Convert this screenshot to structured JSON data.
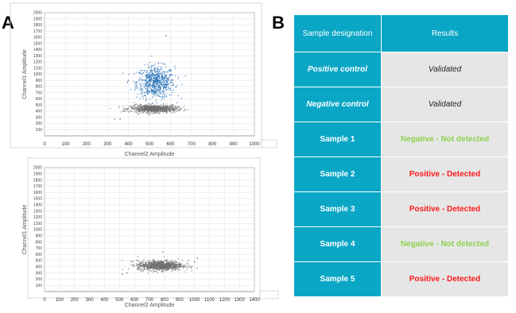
{
  "panel_labels": {
    "a": "A",
    "b": "B"
  },
  "chart_data": [
    {
      "type": "scatter",
      "title": "",
      "xlabel": "Channel2 Amplitude",
      "ylabel": "Channel1 Amplitude",
      "xlim": [
        0,
        1000
      ],
      "ylim": [
        0,
        2000
      ],
      "x_ticks": [
        0,
        100,
        200,
        300,
        400,
        500,
        600,
        700,
        800,
        900,
        1000
      ],
      "y_ticks": [
        100,
        200,
        300,
        400,
        500,
        600,
        700,
        800,
        900,
        1000,
        1100,
        1200,
        1300,
        1400,
        1500,
        1600,
        1700,
        1800,
        1900,
        2000
      ],
      "grid": true,
      "clusters": [
        {
          "color": "#2a73b8",
          "x_center": 530,
          "x_spread": 45,
          "y_center": 870,
          "y_spread": 130,
          "n": 700
        },
        {
          "color": "#6d6d6d",
          "x_center": 520,
          "x_spread": 55,
          "y_center": 440,
          "y_spread": 30,
          "n": 800
        }
      ],
      "outliers": [
        {
          "x": 335,
          "y": 270,
          "color": "#6d6d6d"
        },
        {
          "x": 360,
          "y": 275,
          "color": "#6d6d6d"
        },
        {
          "x": 580,
          "y": 1630,
          "color": "#2a73b8"
        },
        {
          "x": 395,
          "y": 870,
          "color": "#2a73b8"
        }
      ]
    },
    {
      "type": "scatter",
      "title": "",
      "xlabel": "Channel2 Amplitude",
      "ylabel": "Channel1 Amplitude",
      "xlim": [
        0,
        1400
      ],
      "ylim": [
        0,
        2000
      ],
      "x_ticks": [
        0,
        100,
        200,
        300,
        400,
        500,
        600,
        700,
        800,
        900,
        1000,
        1100,
        1200,
        1300,
        1400
      ],
      "y_ticks": [
        100,
        200,
        300,
        400,
        500,
        600,
        700,
        800,
        900,
        1000,
        1100,
        1200,
        1300,
        1400,
        1500,
        1600,
        1700,
        1800,
        1900,
        2000
      ],
      "grid": true,
      "clusters": [
        {
          "color": "#6d6d6d",
          "x_center": 770,
          "x_spread": 75,
          "y_center": 420,
          "y_spread": 40,
          "n": 900
        }
      ],
      "outliers": [
        {
          "x": 520,
          "y": 280,
          "color": "#6d6d6d"
        },
        {
          "x": 550,
          "y": 300,
          "color": "#6d6d6d"
        },
        {
          "x": 1000,
          "y": 480,
          "color": "#6d6d6d"
        },
        {
          "x": 1020,
          "y": 540,
          "color": "#6d6d6d"
        },
        {
          "x": 960,
          "y": 500,
          "color": "#6d6d6d"
        },
        {
          "x": 790,
          "y": 640,
          "color": "#6d6d6d"
        }
      ]
    }
  ],
  "table": {
    "headers": [
      "Sample designation",
      "Results"
    ],
    "rows": [
      {
        "sample": "Positive control",
        "result": "Validated",
        "kind": "ctrl"
      },
      {
        "sample": "Negative control",
        "result": "Validated",
        "kind": "ctrl"
      },
      {
        "sample": "Sample 1",
        "result": "Negative - Not detected",
        "kind": "neg"
      },
      {
        "sample": "Sample 2",
        "result": "Positive - Detected",
        "kind": "pos"
      },
      {
        "sample": "Sample 3",
        "result": "Positive - Detected",
        "kind": "pos"
      },
      {
        "sample": "Sample 4",
        "result": "Negative - Not detected",
        "kind": "neg"
      },
      {
        "sample": "Sample 5",
        "result": "Positive - Detected",
        "kind": "pos"
      }
    ]
  }
}
